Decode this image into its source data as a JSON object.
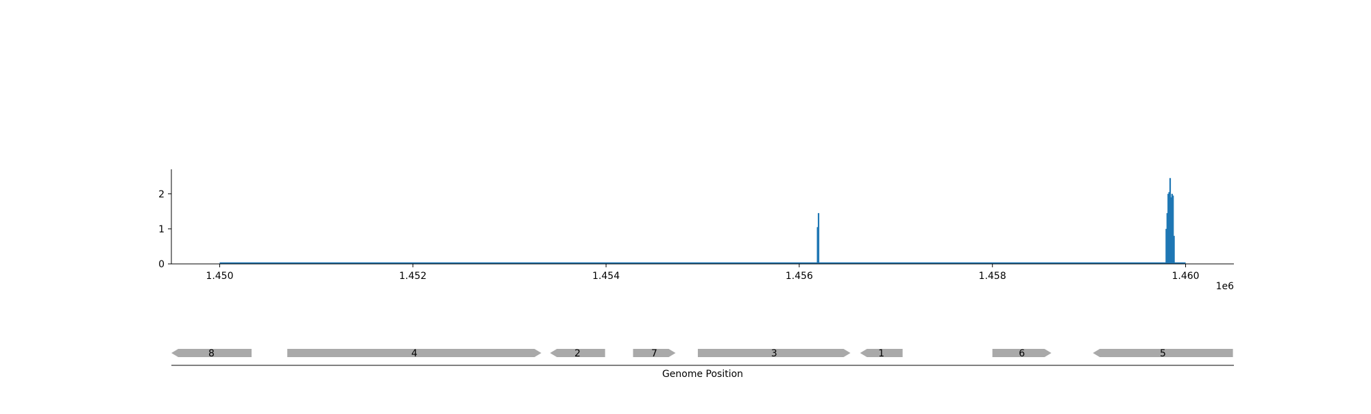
{
  "chart_data": [
    {
      "type": "bar",
      "title": "",
      "xlabel": "",
      "ylabel": "",
      "x_offset_label": "1e6",
      "xlim": [
        1449500,
        1460500
      ],
      "ylim": [
        0,
        2.7
      ],
      "x_ticks": [
        1450000,
        1452000,
        1454000,
        1456000,
        1458000,
        1460000
      ],
      "x_tick_labels": [
        "1.450",
        "1.452",
        "1.454",
        "1.456",
        "1.458",
        "1.460"
      ],
      "y_ticks": [
        0,
        1,
        2
      ],
      "y_tick_labels": [
        "0",
        "1",
        "2"
      ],
      "grid": false,
      "legend": "none",
      "bar_color": "#1f77b4",
      "baseline": [
        1450000,
        1460000
      ],
      "bars": [
        {
          "x": 1456190,
          "y": 1.05
        },
        {
          "x": 1456200,
          "y": 1.45
        },
        {
          "x": 1459800,
          "y": 1.0
        },
        {
          "x": 1459810,
          "y": 1.45
        },
        {
          "x": 1459820,
          "y": 2.0
        },
        {
          "x": 1459830,
          "y": 2.05
        },
        {
          "x": 1459840,
          "y": 2.45
        },
        {
          "x": 1459850,
          "y": 1.9
        },
        {
          "x": 1459860,
          "y": 2.0
        },
        {
          "x": 1459870,
          "y": 1.95
        },
        {
          "x": 1459880,
          "y": 0.8
        }
      ]
    },
    {
      "type": "gene_track",
      "xlabel": "Genome Position",
      "xlim": [
        1449500,
        1460500
      ],
      "gene_color": "#a9a9a9",
      "genes": [
        {
          "label": "8",
          "start": 1449500,
          "end": 1450330,
          "strand": "-"
        },
        {
          "label": "4",
          "start": 1450700,
          "end": 1453330,
          "strand": "+"
        },
        {
          "label": "2",
          "start": 1453420,
          "end": 1453990,
          "strand": "-"
        },
        {
          "label": "7",
          "start": 1454280,
          "end": 1454720,
          "strand": "+"
        },
        {
          "label": "3",
          "start": 1454950,
          "end": 1456530,
          "strand": "+"
        },
        {
          "label": "1",
          "start": 1456630,
          "end": 1457070,
          "strand": "-"
        },
        {
          "label": "6",
          "start": 1458000,
          "end": 1458610,
          "strand": "+"
        },
        {
          "label": "5",
          "start": 1459040,
          "end": 1460490,
          "strand": "-"
        }
      ]
    }
  ]
}
